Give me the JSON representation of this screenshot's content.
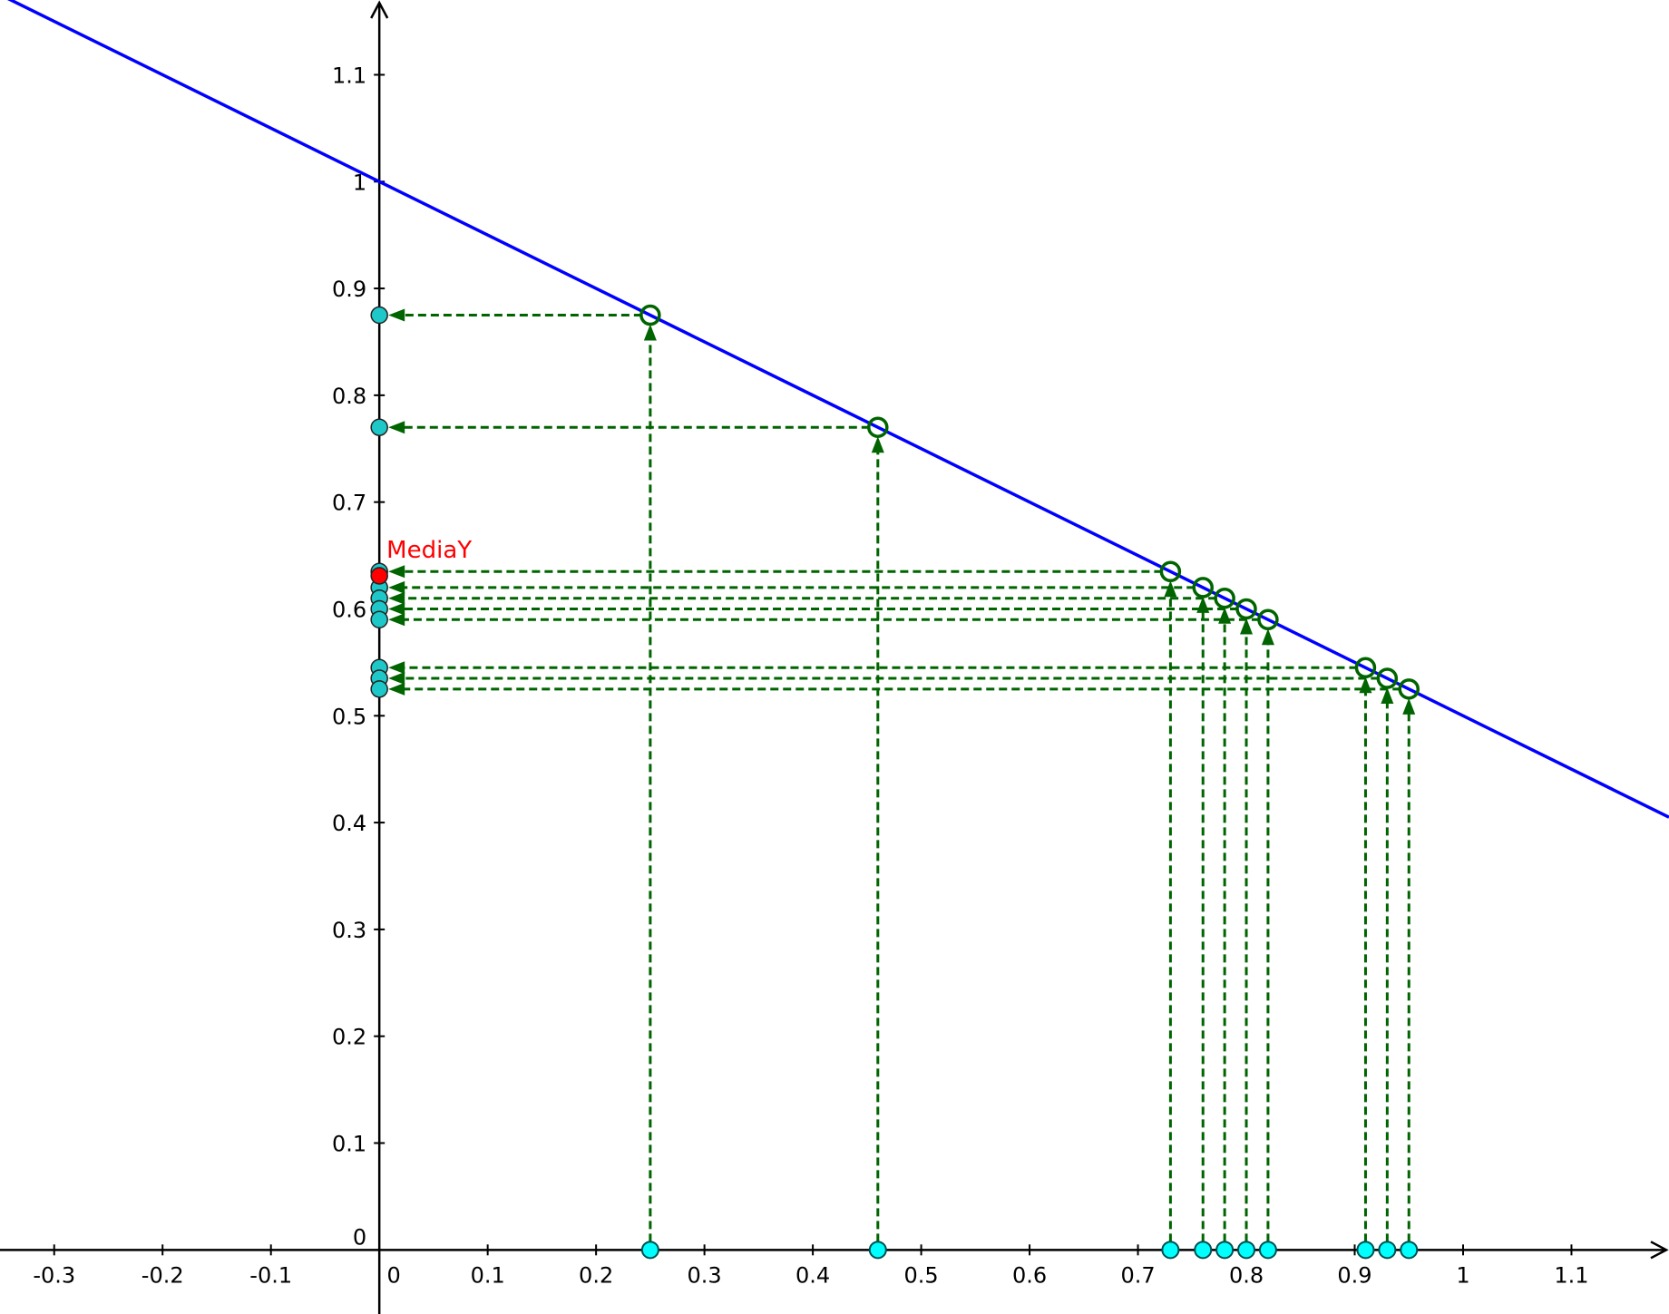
{
  "chart_data": {
    "type": "scatter",
    "xlim": [
      -0.35,
      1.19
    ],
    "ylim": [
      -0.06,
      1.17
    ],
    "grid": false,
    "x_ticks": [
      {
        "v": -0.3,
        "label": "-0.3"
      },
      {
        "v": -0.2,
        "label": "-0.2"
      },
      {
        "v": -0.1,
        "label": "-0.1"
      },
      {
        "v": 0,
        "label": "0"
      },
      {
        "v": 0.1,
        "label": "0.1"
      },
      {
        "v": 0.2,
        "label": "0.2"
      },
      {
        "v": 0.3,
        "label": "0.3"
      },
      {
        "v": 0.4,
        "label": "0.4"
      },
      {
        "v": 0.5,
        "label": "0.5"
      },
      {
        "v": 0.6,
        "label": "0.6"
      },
      {
        "v": 0.7,
        "label": "0.7"
      },
      {
        "v": 0.8,
        "label": "0.8"
      },
      {
        "v": 0.9,
        "label": "0.9"
      },
      {
        "v": 1,
        "label": "1"
      },
      {
        "v": 1.1,
        "label": "1.1"
      }
    ],
    "y_ticks": [
      {
        "v": 0.1,
        "label": "0.1"
      },
      {
        "v": 0.2,
        "label": "0.2"
      },
      {
        "v": 0.3,
        "label": "0.3"
      },
      {
        "v": 0.4,
        "label": "0.4"
      },
      {
        "v": 0.5,
        "label": "0.5"
      },
      {
        "v": 0.6,
        "label": "0.6"
      },
      {
        "v": 0.7,
        "label": "0.7"
      },
      {
        "v": 0.8,
        "label": "0.8"
      },
      {
        "v": 0.9,
        "label": "0.9"
      },
      {
        "v": 1,
        "label": "1"
      },
      {
        "v": 1.1,
        "label": "1.1"
      }
    ],
    "origin_label": "0",
    "line": {
      "slope": -0.5,
      "intercept": 1.0,
      "color": "#0000ff"
    },
    "x_values": [
      0.25,
      0.46,
      0.73,
      0.76,
      0.78,
      0.8,
      0.82,
      0.91,
      0.93,
      0.95
    ],
    "mean_y": {
      "label": "MediaY",
      "value": 0.631,
      "color": "#ff0000"
    },
    "colors": {
      "point_fill": "#1ec8c8",
      "xpoint_fill": "#00ffff",
      "projection": "#006400",
      "axis": "#000000"
    }
  }
}
